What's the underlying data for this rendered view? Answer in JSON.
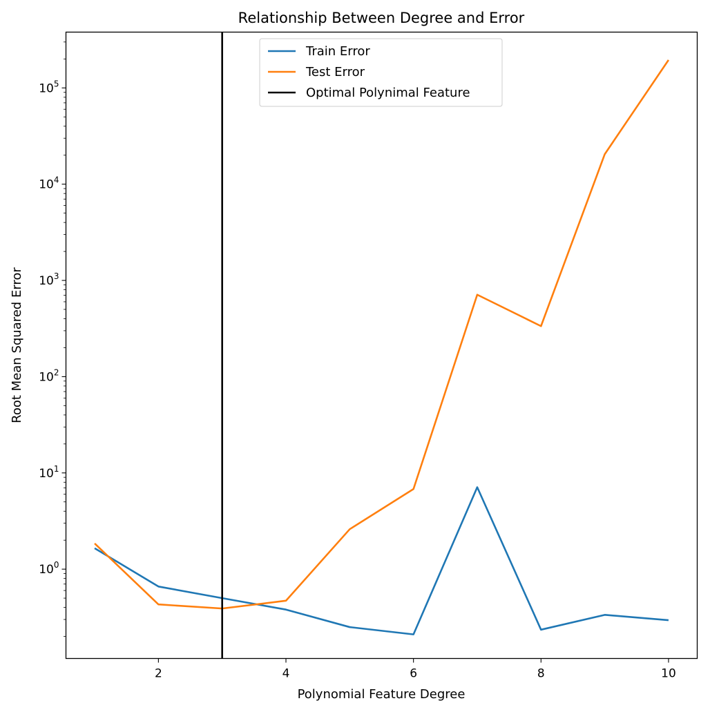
{
  "chart_data": {
    "type": "line",
    "title": "Relationship Between Degree and Error",
    "xlabel": "Polynomial Feature Degree",
    "ylabel": "Root Mean Squared Error",
    "yscale": "log",
    "xlim": [
      0.55,
      10.45
    ],
    "ylim": [
      0.118,
      380000
    ],
    "x": [
      1,
      2,
      3,
      4,
      5,
      6,
      7,
      8,
      9,
      10
    ],
    "xticks": [
      2,
      4,
      6,
      8,
      10
    ],
    "xtick_labels": [
      "2",
      "4",
      "6",
      "8",
      "10"
    ],
    "yticks": [
      1,
      10,
      100,
      1000,
      10000,
      100000
    ],
    "ytick_labels": [
      {
        "base": "10",
        "exp": "0"
      },
      {
        "base": "10",
        "exp": "1"
      },
      {
        "base": "10",
        "exp": "2"
      },
      {
        "base": "10",
        "exp": "3"
      },
      {
        "base": "10",
        "exp": "4"
      },
      {
        "base": "10",
        "exp": "5"
      }
    ],
    "series": [
      {
        "name": "Train Error",
        "color": "#1f77b4",
        "values": [
          1.65,
          0.66,
          0.5,
          0.38,
          0.25,
          0.21,
          7.1,
          0.235,
          0.335,
          0.295
        ]
      },
      {
        "name": "Test Error",
        "color": "#ff7f0e",
        "values": [
          1.85,
          0.43,
          0.39,
          0.47,
          2.6,
          6.8,
          710,
          335,
          20500,
          195000
        ]
      }
    ],
    "vline": {
      "name": "Optimal Polynimal Feature",
      "x": 3,
      "color": "#000000"
    },
    "legend_position": "top-center",
    "grid": false
  }
}
